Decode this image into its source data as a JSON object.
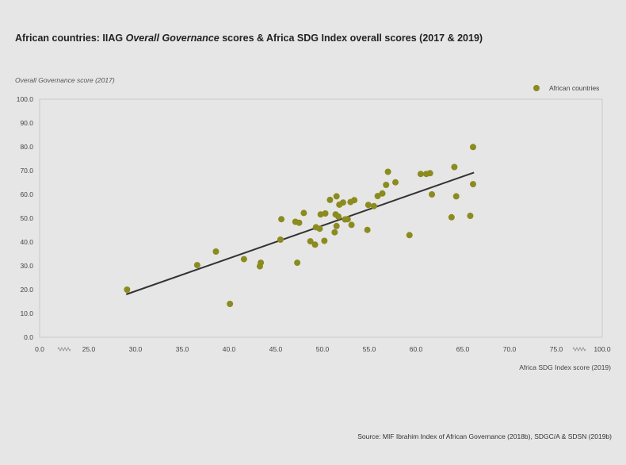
{
  "title": {
    "part1": "African countries: IIAG ",
    "part2": "Overall Governance",
    "part3": " scores & Africa SDG Index overall scores (2017 & 2019)"
  },
  "source": "Source: MIF Ibrahim Index of African Governance (2018b), SDGC/A & SDSN (2019b)",
  "chart_data": {
    "type": "scatter",
    "ylabel": "Overall Governance score (2017)",
    "xlabel": "Africa SDG Index score (2019)",
    "legend": "top-right",
    "grid": false,
    "ylim": [
      0,
      100
    ],
    "yticks": [
      "100.0",
      "90.0",
      "80.0",
      "70.0",
      "60.0",
      "50.0",
      "40.0",
      "30.0",
      "20.0",
      "10.0",
      "0.0"
    ],
    "xlim_broken": [
      0,
      25,
      75,
      100
    ],
    "x_ticks": [
      {
        "label": "0.0",
        "value": 0
      },
      {
        "label": "25.0",
        "value": 25
      },
      {
        "label": "30.0",
        "value": 30
      },
      {
        "label": "35.0",
        "value": 35
      },
      {
        "label": "40.0",
        "value": 40
      },
      {
        "label": "45.0",
        "value": 45
      },
      {
        "label": "50.0",
        "value": 50
      },
      {
        "label": "55.0",
        "value": 55
      },
      {
        "label": "60.0",
        "value": 60
      },
      {
        "label": "65.0",
        "value": 65
      },
      {
        "label": "70.0",
        "value": 70
      },
      {
        "label": "75.0",
        "value": 75
      },
      {
        "label": "100.0",
        "value": 100
      }
    ],
    "series": [
      {
        "name": "African countries",
        "color": "#8b8b1f",
        "points": [
          [
            29.1,
            20.0
          ],
          [
            36.6,
            30.3
          ],
          [
            38.6,
            36.0
          ],
          [
            40.1,
            14.0
          ],
          [
            41.6,
            32.8
          ],
          [
            43.3,
            29.8
          ],
          [
            43.4,
            31.3
          ],
          [
            45.5,
            41.0
          ],
          [
            45.6,
            49.6
          ],
          [
            47.1,
            48.5
          ],
          [
            47.3,
            31.3
          ],
          [
            47.5,
            48.1
          ],
          [
            48.0,
            52.2
          ],
          [
            48.7,
            40.3
          ],
          [
            49.2,
            38.9
          ],
          [
            49.3,
            46.2
          ],
          [
            49.7,
            45.6
          ],
          [
            49.8,
            51.6
          ],
          [
            50.2,
            40.5
          ],
          [
            50.3,
            52.0
          ],
          [
            50.8,
            57.7
          ],
          [
            51.3,
            44.1
          ],
          [
            51.4,
            51.6
          ],
          [
            51.5,
            46.7
          ],
          [
            51.5,
            59.2
          ],
          [
            51.7,
            50.7
          ],
          [
            51.8,
            55.7
          ],
          [
            52.2,
            56.6
          ],
          [
            52.4,
            49.5
          ],
          [
            52.7,
            49.6
          ],
          [
            53.0,
            56.8
          ],
          [
            53.1,
            47.2
          ],
          [
            53.4,
            57.6
          ],
          [
            54.8,
            45.1
          ],
          [
            54.9,
            55.6
          ],
          [
            55.5,
            55.1
          ],
          [
            55.9,
            59.3
          ],
          [
            56.4,
            60.4
          ],
          [
            56.8,
            64.0
          ],
          [
            57.0,
            69.5
          ],
          [
            57.8,
            65.1
          ],
          [
            59.3,
            42.9
          ],
          [
            60.5,
            68.6
          ],
          [
            61.1,
            68.6
          ],
          [
            61.5,
            68.9
          ],
          [
            61.7,
            60.0
          ],
          [
            63.8,
            50.4
          ],
          [
            64.1,
            71.5
          ],
          [
            64.3,
            59.2
          ],
          [
            65.8,
            51.0
          ],
          [
            66.1,
            79.9
          ],
          [
            66.1,
            64.3
          ]
        ]
      }
    ],
    "trendline": [
      [
        29.0,
        18.0
      ],
      [
        66.2,
        69.2
      ]
    ]
  }
}
